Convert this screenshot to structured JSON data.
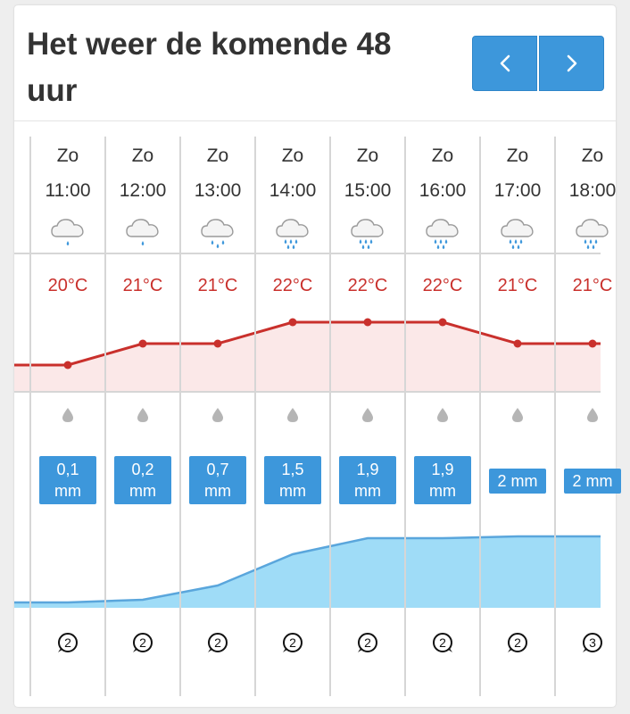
{
  "header": {
    "title": "Het weer de komende 48 uur",
    "prev_label": "‹",
    "next_label": "›"
  },
  "colors": {
    "accent": "#3d97db",
    "temperature": "#c9302c",
    "temperature_fill": "#fbe8e8",
    "precip_fill": "#9fdcf7",
    "precip_line": "#5aa6dc"
  },
  "icons": {
    "weather": "cloud-rain-icon",
    "precipitation": "raindrop-icon",
    "wind": "wind-direction-icon"
  },
  "forecast": [
    {
      "day": "Zo",
      "time": "11:00",
      "temp_c": 20,
      "temp": "20°C",
      "rain_mm": 0.1,
      "rain_num": "0,1",
      "rain_unit": "mm",
      "wind_force": "2",
      "wind_dir_deg": 225,
      "precip_level": 0.06
    },
    {
      "day": "Zo",
      "time": "12:00",
      "temp_c": 21,
      "temp": "21°C",
      "rain_mm": 0.2,
      "rain_num": "0,2",
      "rain_unit": "mm",
      "wind_force": "2",
      "wind_dir_deg": 225,
      "precip_level": 0.09
    },
    {
      "day": "Zo",
      "time": "13:00",
      "temp_c": 21,
      "temp": "21°C",
      "rain_mm": 0.7,
      "rain_num": "0,7",
      "rain_unit": "mm",
      "wind_force": "2",
      "wind_dir_deg": 225,
      "precip_level": 0.25
    },
    {
      "day": "Zo",
      "time": "14:00",
      "temp_c": 22,
      "temp": "22°C",
      "rain_mm": 1.5,
      "rain_num": "1,5",
      "rain_unit": "mm",
      "wind_force": "2",
      "wind_dir_deg": 225,
      "precip_level": 0.6
    },
    {
      "day": "Zo",
      "time": "15:00",
      "temp_c": 22,
      "temp": "22°C",
      "rain_mm": 1.9,
      "rain_num": "1,9",
      "rain_unit": "mm",
      "wind_force": "2",
      "wind_dir_deg": 225,
      "precip_level": 0.78
    },
    {
      "day": "Zo",
      "time": "16:00",
      "temp_c": 22,
      "temp": "22°C",
      "rain_mm": 1.9,
      "rain_num": "1,9",
      "rain_unit": "mm",
      "wind_force": "2",
      "wind_dir_deg": 135,
      "precip_level": 0.78
    },
    {
      "day": "Zo",
      "time": "17:00",
      "temp_c": 21,
      "temp": "21°C",
      "rain_mm": 2,
      "rain_num": "2 mm",
      "rain_unit": "",
      "wind_force": "2",
      "wind_dir_deg": 225,
      "precip_level": 0.8
    },
    {
      "day": "Zo",
      "time": "18:00",
      "temp_c": 21,
      "temp": "21°C",
      "rain_mm": 2,
      "rain_num": "2 mm",
      "rain_unit": "",
      "wind_force": "3",
      "wind_dir_deg": 225,
      "precip_level": 0.8
    }
  ]
}
